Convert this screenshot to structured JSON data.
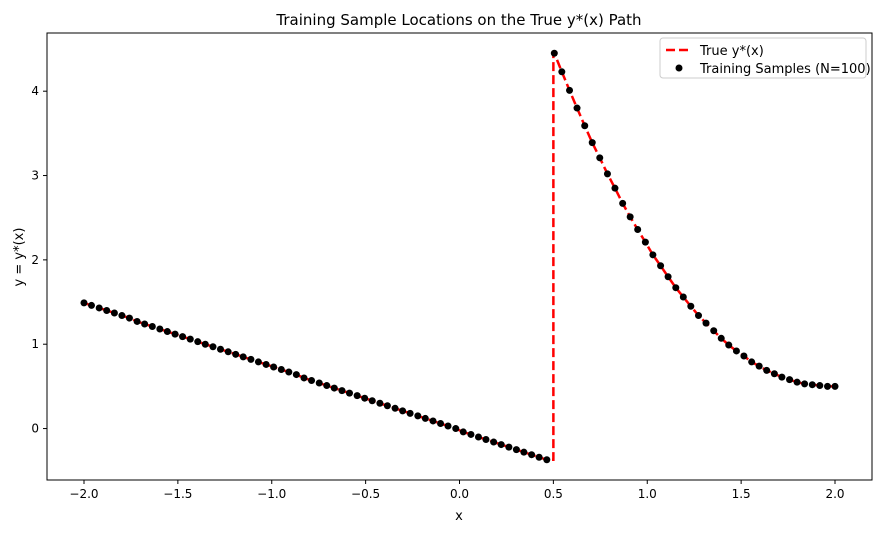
{
  "chart_data": {
    "type": "line",
    "title": "Training Sample Locations on the True y*(x) Path",
    "xlabel": "x",
    "ylabel": "y = y*(x)",
    "xlim": [
      -2.197,
      2.197
    ],
    "ylim": [
      -0.61,
      4.69
    ],
    "xticks": [
      "−2.0",
      "−1.5",
      "−1.0",
      "−0.5",
      "0.0",
      "0.5",
      "1.0",
      "1.5",
      "2.0"
    ],
    "xtick_values": [
      -2.0,
      -1.5,
      -1.0,
      -0.5,
      0.0,
      0.5,
      1.0,
      1.5,
      2.0
    ],
    "yticks": [
      "0",
      "1",
      "2",
      "3",
      "4"
    ],
    "ytick_values": [
      0,
      1,
      2,
      3,
      4
    ],
    "grid": false,
    "legend_position": "top-right",
    "discontinuity_x": 0.5,
    "series": [
      {
        "name": "True y*(x)",
        "style": "dashed-line",
        "color": "#ff0000"
      },
      {
        "name": "Training Samples (N=100)",
        "style": "scatter",
        "color": "#000000"
      }
    ],
    "x": [
      -2.0,
      -1.96,
      -1.919,
      -1.879,
      -1.838,
      -1.798,
      -1.758,
      -1.717,
      -1.677,
      -1.636,
      -1.596,
      -1.556,
      -1.515,
      -1.475,
      -1.434,
      -1.394,
      -1.354,
      -1.313,
      -1.273,
      -1.232,
      -1.192,
      -1.152,
      -1.111,
      -1.071,
      -1.03,
      -0.99,
      -0.949,
      -0.909,
      -0.869,
      -0.828,
      -0.788,
      -0.747,
      -0.707,
      -0.667,
      -0.626,
      -0.586,
      -0.545,
      -0.505,
      -0.465,
      -0.424,
      -0.384,
      -0.343,
      -0.303,
      -0.263,
      -0.222,
      -0.182,
      -0.141,
      -0.101,
      -0.061,
      -0.02,
      0.02,
      0.061,
      0.101,
      0.141,
      0.182,
      0.222,
      0.263,
      0.303,
      0.343,
      0.384,
      0.424,
      0.465,
      0.505,
      0.545,
      0.586,
      0.626,
      0.667,
      0.707,
      0.747,
      0.788,
      0.828,
      0.869,
      0.909,
      0.949,
      0.99,
      1.03,
      1.071,
      1.111,
      1.152,
      1.192,
      1.232,
      1.273,
      1.313,
      1.354,
      1.394,
      1.434,
      1.475,
      1.515,
      1.556,
      1.596,
      1.636,
      1.677,
      1.717,
      1.758,
      1.798,
      1.838,
      1.879,
      1.919,
      1.96,
      2.0
    ],
    "y": [
      1.49,
      1.46,
      1.43,
      1.4,
      1.37,
      1.34,
      1.31,
      1.27,
      1.24,
      1.21,
      1.18,
      1.15,
      1.12,
      1.09,
      1.06,
      1.03,
      1.0,
      0.97,
      0.94,
      0.91,
      0.88,
      0.85,
      0.82,
      0.79,
      0.76,
      0.73,
      0.7,
      0.67,
      0.64,
      0.6,
      0.57,
      0.54,
      0.51,
      0.48,
      0.45,
      0.42,
      0.39,
      0.36,
      0.33,
      0.3,
      0.27,
      0.24,
      0.21,
      0.18,
      0.15,
      0.12,
      0.09,
      0.06,
      0.03,
      0.0,
      -0.04,
      -0.07,
      -0.1,
      -0.13,
      -0.16,
      -0.19,
      -0.22,
      -0.25,
      -0.28,
      -0.31,
      -0.34,
      -0.37,
      4.45,
      4.23,
      4.01,
      3.8,
      3.59,
      3.39,
      3.21,
      3.02,
      2.85,
      2.67,
      2.51,
      2.36,
      2.21,
      2.06,
      1.93,
      1.8,
      1.67,
      1.56,
      1.45,
      1.34,
      1.25,
      1.16,
      1.07,
      0.99,
      0.92,
      0.86,
      0.79,
      0.74,
      0.69,
      0.65,
      0.61,
      0.58,
      0.55,
      0.53,
      0.52,
      0.51,
      0.5,
      0.5
    ]
  }
}
